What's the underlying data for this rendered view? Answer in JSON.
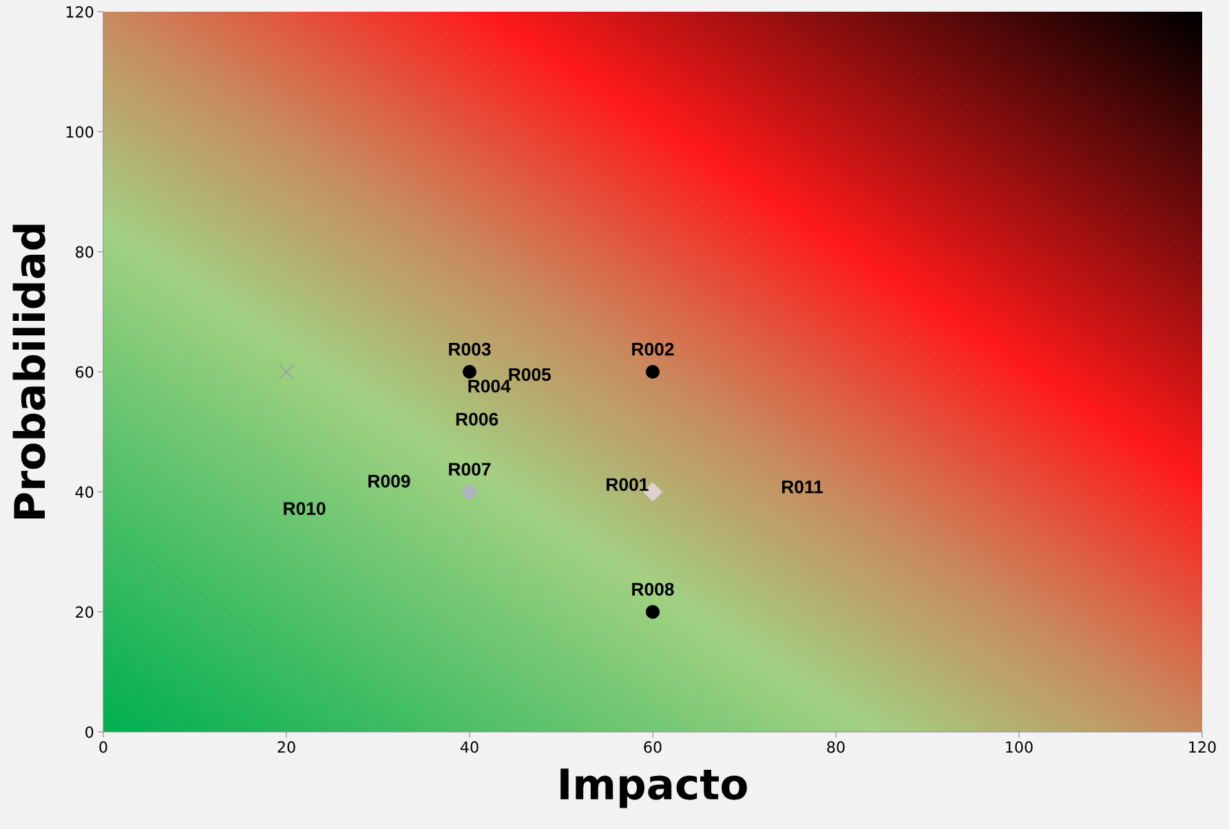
{
  "chart_data": {
    "type": "scatter",
    "xlabel": "Impacto",
    "ylabel": "Probabilidad",
    "xlim": [
      0,
      120
    ],
    "ylim": [
      0,
      120
    ],
    "xticks": [
      0,
      20,
      40,
      60,
      80,
      100,
      120
    ],
    "yticks": [
      0,
      20,
      40,
      60,
      80,
      100,
      120
    ],
    "grid": false,
    "legend": false,
    "series": [
      {
        "x": [
          20
        ],
        "values": [
          60
        ],
        "color": "#a0a0a0",
        "marker": "cross"
      },
      {
        "x": [
          40,
          60
        ],
        "values": [
          60,
          20
        ],
        "color": "#000000",
        "marker": "circle",
        "value_labels": [
          "R003",
          "R008"
        ]
      },
      {
        "x": [
          60
        ],
        "values": [
          60
        ],
        "color": "#000000",
        "marker": "circle",
        "value_labels": [
          "R002"
        ]
      },
      {
        "x": [
          60
        ],
        "values": [
          40
        ],
        "color": "#e0d0d0",
        "marker": "diamond",
        "value_labels": [
          "R001"
        ]
      },
      {
        "x": [
          40
        ],
        "values": [
          40
        ],
        "color": "#b0b4c0",
        "marker": "circle",
        "value_labels": [
          "R007"
        ]
      }
    ],
    "annotations": [
      "R004",
      "R005",
      "R006",
      "R009",
      "R010",
      "R011"
    ]
  }
}
